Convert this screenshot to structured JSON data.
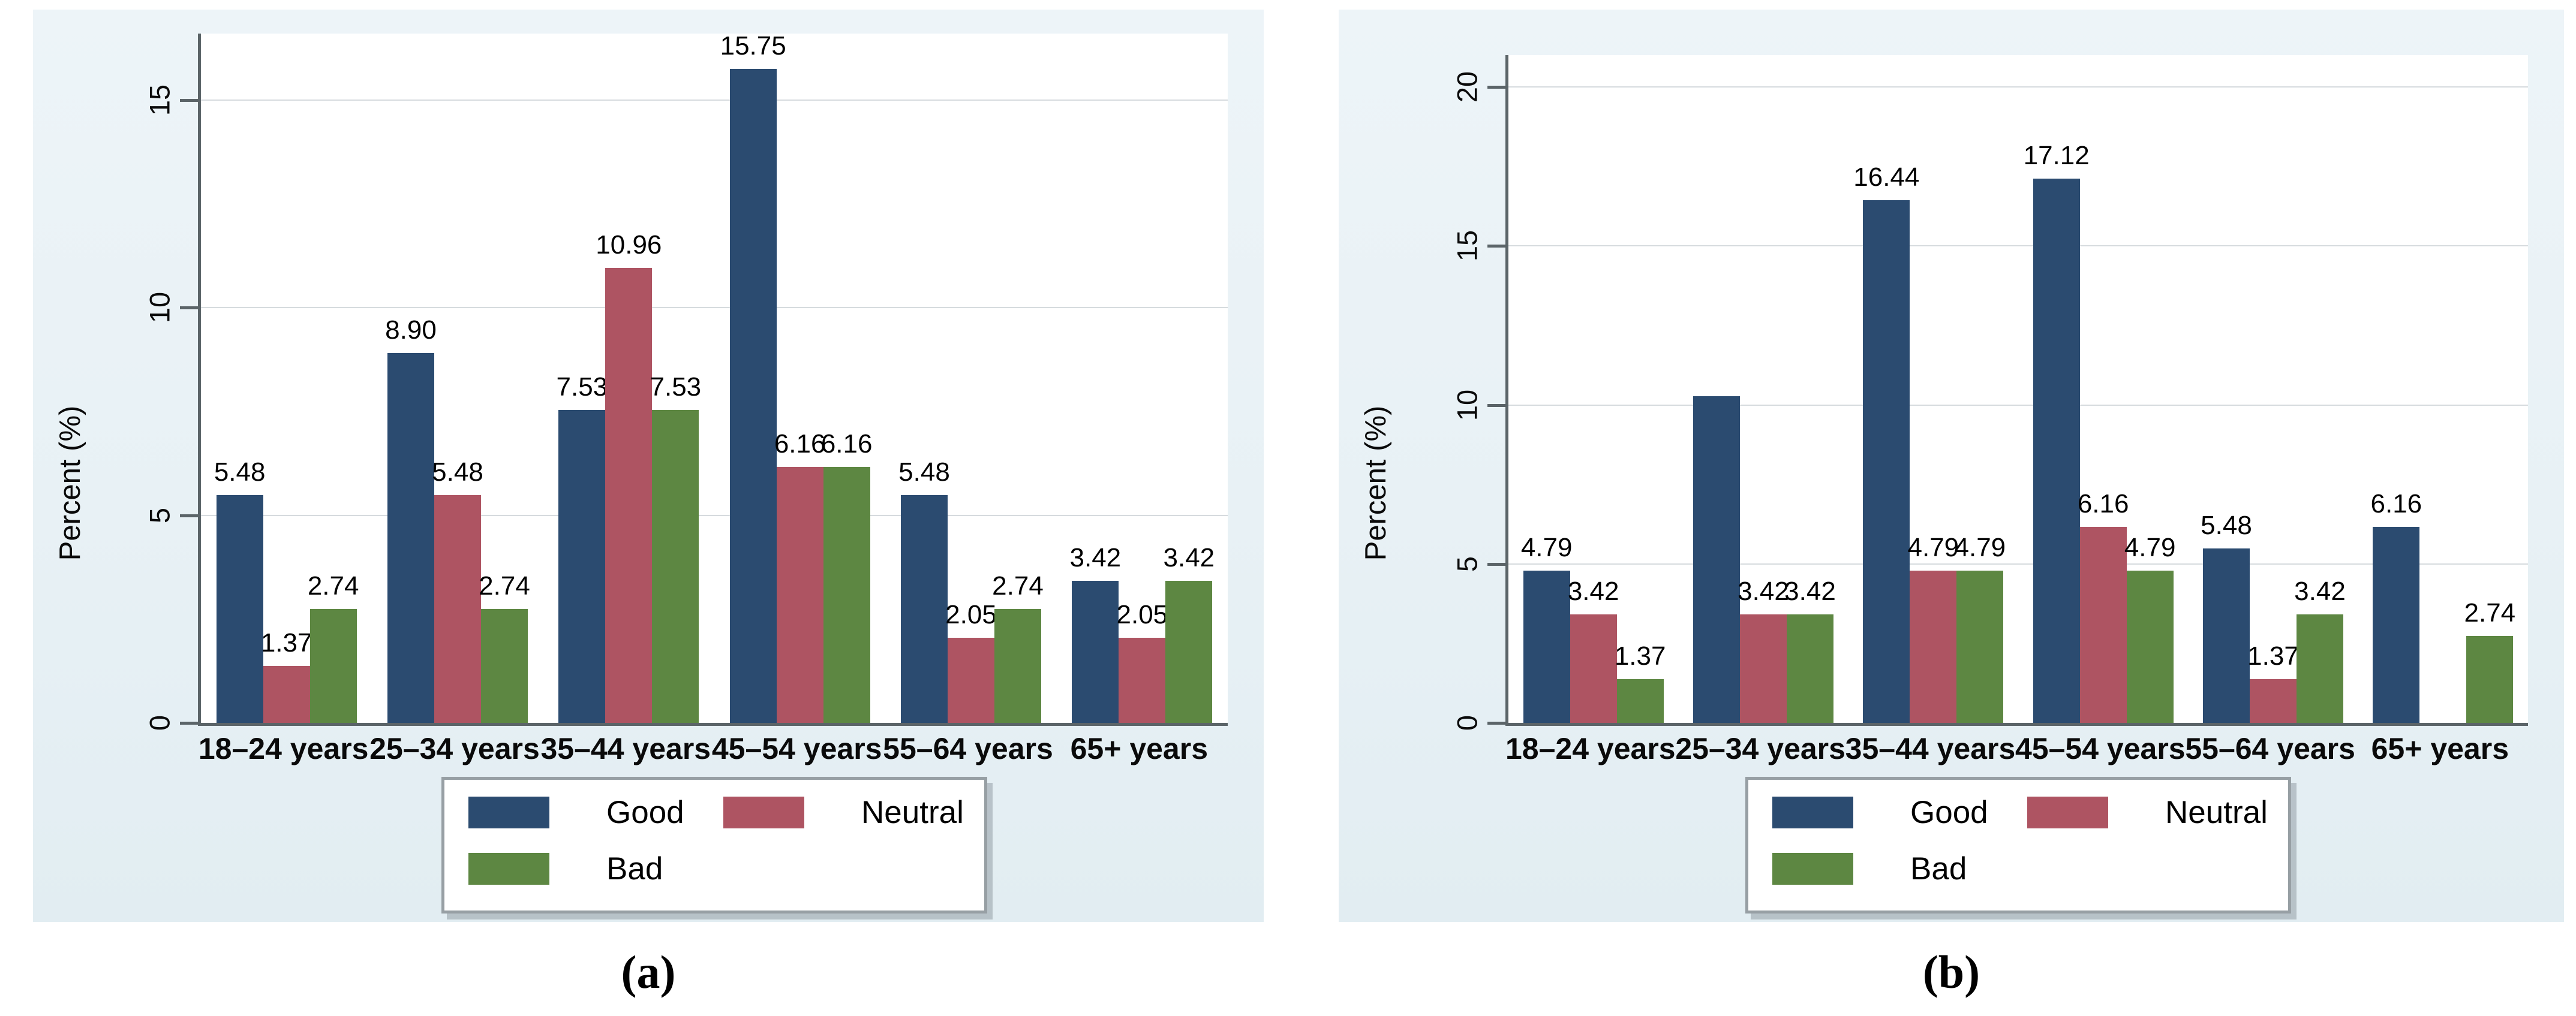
{
  "figure": {
    "description": "Two grouped bar charts of self-rated status by age group",
    "colors": {
      "panel_background": "#e8f1f5",
      "plot_background": "#ffffff",
      "gridline": "#d6dbde",
      "axis": "#5b6468",
      "good": "#2b4b70",
      "neutral": "#ae5462",
      "bad": "#5d8742"
    },
    "legend": {
      "position": "bottom",
      "items": [
        {
          "label": "Good",
          "color": "#2b4b70"
        },
        {
          "label": "Neutral",
          "color": "#ae5462"
        },
        {
          "label": "Bad",
          "color": "#5d8742"
        }
      ]
    }
  },
  "chart_data": [
    {
      "type": "bar",
      "panel": "a",
      "caption": "(a)",
      "title": "",
      "xlabel": "",
      "ylabel": "Percent (%)",
      "ylim": [
        0,
        16.6
      ],
      "yticks": [
        0,
        5,
        10,
        15
      ],
      "ytick_labels": [
        "0",
        "5",
        "10",
        "15"
      ],
      "grid": true,
      "legend_position": "bottom",
      "categories": [
        "18–24 years",
        "25–34 years",
        "35–44 years",
        "45–54 years",
        "55–64 years",
        "65+ years"
      ],
      "series": [
        {
          "name": "Good",
          "color": "#2b4b70",
          "values": [
            5.48,
            8.9,
            7.53,
            15.75,
            5.48,
            3.42
          ],
          "data_labels": [
            "5.48",
            "8.90",
            "7.53",
            "15.75",
            "5.48",
            "3.42"
          ]
        },
        {
          "name": "Neutral",
          "color": "#ae5462",
          "values": [
            1.37,
            5.48,
            10.96,
            6.16,
            2.05,
            2.05
          ],
          "data_labels": [
            "1.37",
            "5.48",
            "10.96",
            "6.16",
            "2.05",
            "2.05"
          ]
        },
        {
          "name": "Bad",
          "color": "#5d8742",
          "values": [
            2.74,
            2.74,
            7.53,
            6.16,
            2.74,
            3.42
          ],
          "data_labels": [
            "2.74",
            "2.74",
            "7.53",
            "6.16",
            "2.74",
            "3.42"
          ]
        }
      ]
    },
    {
      "type": "bar",
      "panel": "b",
      "caption": "(b)",
      "title": "",
      "xlabel": "",
      "ylabel": "Percent (%)",
      "ylim": [
        0,
        21
      ],
      "yticks": [
        0,
        5,
        10,
        15,
        20
      ],
      "ytick_labels": [
        "0",
        "5",
        "10",
        "15",
        "20"
      ],
      "grid": true,
      "legend_position": "bottom",
      "categories": [
        "18–24 years",
        "25–34 years",
        "35–44 years",
        "45–54 years",
        "55–64 years",
        "65+ years"
      ],
      "series": [
        {
          "name": "Good",
          "color": "#2b4b70",
          "values": [
            4.79,
            10.27,
            16.44,
            17.12,
            5.48,
            6.16
          ],
          "data_labels": [
            "4.79",
            "",
            "16.44",
            "17.12",
            "5.48",
            "6.16"
          ],
          "note": "25–34 bar shown without a printed data label; value ~10.27 estimated from gridlines"
        },
        {
          "name": "Neutral",
          "color": "#ae5462",
          "values": [
            3.42,
            3.42,
            4.79,
            6.16,
            1.37,
            0
          ],
          "data_labels": [
            "3.42",
            "3.42",
            "4.79",
            "6.16",
            "1.37",
            ""
          ],
          "note": "no Neutral bar drawn for 65+ years"
        },
        {
          "name": "Bad",
          "color": "#5d8742",
          "values": [
            1.37,
            3.42,
            4.79,
            4.79,
            3.42,
            2.74
          ],
          "data_labels": [
            "1.37",
            "3.42",
            "4.79",
            "4.79",
            "3.42",
            "2.74"
          ]
        }
      ]
    }
  ]
}
